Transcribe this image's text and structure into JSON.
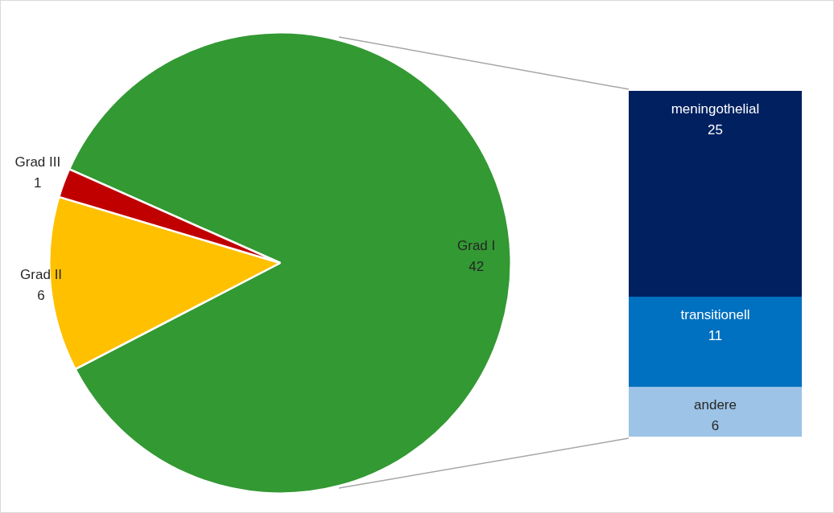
{
  "chart_data": [
    {
      "type": "pie",
      "categories": [
        "Grad I",
        "Grad II",
        "Grad III"
      ],
      "values": [
        42,
        6,
        1
      ],
      "colors": [
        "#339933",
        "#ffc000",
        "#c00000"
      ],
      "data_labels": true,
      "legend": false
    },
    {
      "type": "bar",
      "stacked": true,
      "categories": [
        null
      ],
      "data_labels": true,
      "legend": false,
      "series": [
        {
          "name": "andere",
          "color": "#9dc3e6",
          "values": [
            6
          ]
        },
        {
          "name": "transitionell",
          "color": "#0070c0",
          "values": [
            11
          ]
        },
        {
          "name": "meningothelial",
          "color": "#002060",
          "values": [
            25
          ]
        }
      ]
    }
  ]
}
